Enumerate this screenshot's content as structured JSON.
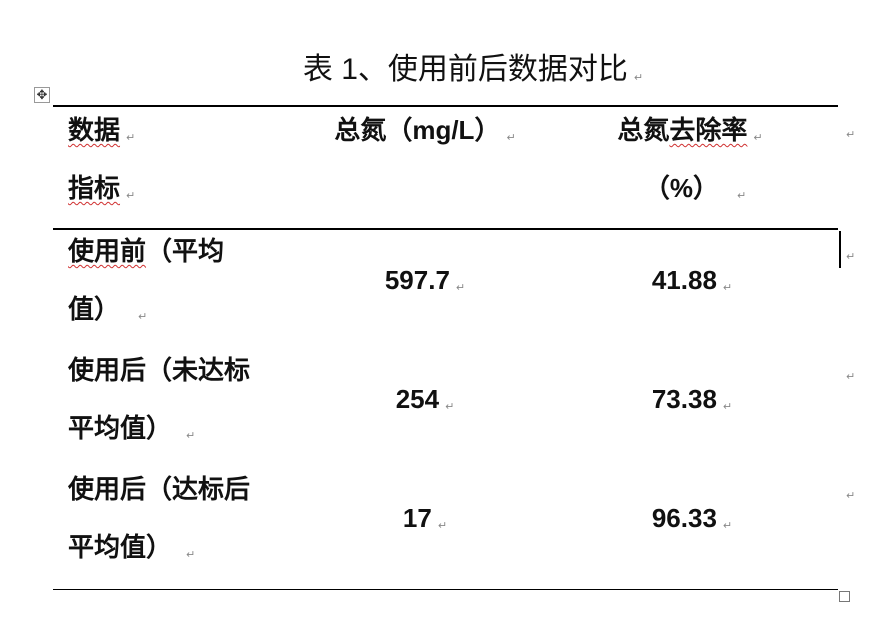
{
  "title": "表 1、使用前后数据对比",
  "paragraph_mark": "↵",
  "header": {
    "col1_line1": "数据",
    "col1_line2": "指标",
    "col2": "总氮（mg/L）",
    "col3_a": "总氮",
    "col3_b": "去除率",
    "col3_line2": "（%）"
  },
  "rows": [
    {
      "label_line1_a": "使用前",
      "label_line1_b": "（平均",
      "label_line2": "值）",
      "total_nitrogen": "597.7",
      "removal_rate": "41.88"
    },
    {
      "label_line1_a": "使用后",
      "label_line1_b": "（未达标",
      "label_line2": "平均值）",
      "total_nitrogen": "254",
      "removal_rate": "73.38"
    },
    {
      "label_line1_a": "使用后",
      "label_line1_b": "（达标后",
      "label_line2": "平均值）",
      "total_nitrogen": "17",
      "removal_rate": "96.33"
    }
  ]
}
